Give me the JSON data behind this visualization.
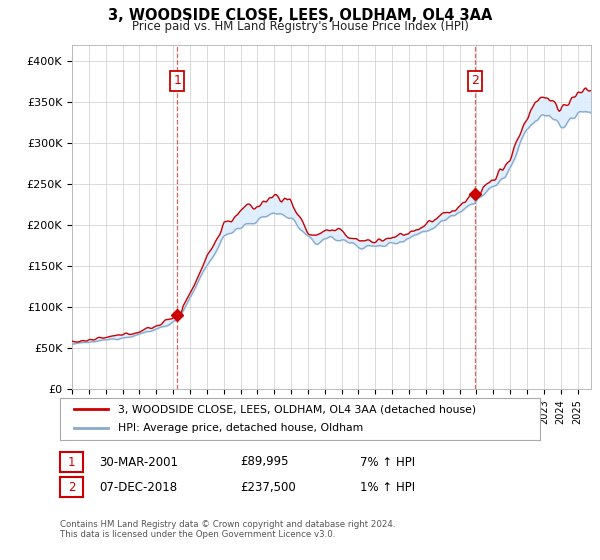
{
  "title": "3, WOODSIDE CLOSE, LEES, OLDHAM, OL4 3AA",
  "subtitle": "Price paid vs. HM Land Registry's House Price Index (HPI)",
  "legend_line1": "3, WOODSIDE CLOSE, LEES, OLDHAM, OL4 3AA (detached house)",
  "legend_line2": "HPI: Average price, detached house, Oldham",
  "annotation1_date": "30-MAR-2001",
  "annotation1_price": "£89,995",
  "annotation1_hpi": "7% ↑ HPI",
  "annotation2_date": "07-DEC-2018",
  "annotation2_price": "£237,500",
  "annotation2_hpi": "1% ↑ HPI",
  "footer1": "Contains HM Land Registry data © Crown copyright and database right 2024.",
  "footer2": "This data is licensed under the Open Government Licence v3.0.",
  "red_color": "#cc0000",
  "blue_color": "#88aacc",
  "fill_color": "#ddeeff",
  "background_color": "#ffffff",
  "grid_color": "#cccccc",
  "annotation_color": "#cc0000",
  "ylim_min": 0,
  "ylim_max": 420000,
  "sale1_year": 2001.25,
  "sale1_price": 89995,
  "sale2_year": 2018.92,
  "sale2_price": 237500
}
